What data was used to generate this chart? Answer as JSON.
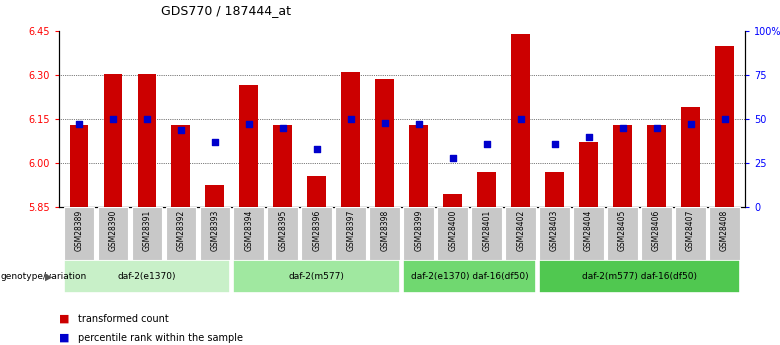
{
  "title": "GDS770 / 187444_at",
  "samples": [
    "GSM28389",
    "GSM28390",
    "GSM28391",
    "GSM28392",
    "GSM28393",
    "GSM28394",
    "GSM28395",
    "GSM28396",
    "GSM28397",
    "GSM28398",
    "GSM28399",
    "GSM28400",
    "GSM28401",
    "GSM28402",
    "GSM28403",
    "GSM28404",
    "GSM28405",
    "GSM28406",
    "GSM28407",
    "GSM28408"
  ],
  "transformed_count": [
    6.13,
    6.305,
    6.305,
    6.13,
    5.925,
    6.265,
    6.13,
    5.955,
    6.31,
    6.285,
    6.13,
    5.895,
    5.97,
    6.44,
    5.97,
    6.07,
    6.13,
    6.13,
    6.19,
    6.4
  ],
  "percentile_rank": [
    47,
    50,
    50,
    44,
    37,
    47,
    45,
    33,
    50,
    48,
    47,
    28,
    36,
    50,
    36,
    40,
    45,
    45,
    47,
    50
  ],
  "ylim_left": [
    5.85,
    6.45
  ],
  "ylim_right": [
    0,
    100
  ],
  "yticks_left": [
    5.85,
    6.0,
    6.15,
    6.3,
    6.45
  ],
  "yticks_right": [
    0,
    25,
    50,
    75,
    100
  ],
  "ytick_labels_right": [
    "0",
    "25",
    "50",
    "75",
    "100%"
  ],
  "groups": [
    {
      "label": "daf-2(e1370)",
      "start": 0,
      "end": 4,
      "color": "#c8f0c8"
    },
    {
      "label": "daf-2(m577)",
      "start": 5,
      "end": 9,
      "color": "#a0e8a0"
    },
    {
      "label": "daf-2(e1370) daf-16(df50)",
      "start": 10,
      "end": 13,
      "color": "#70d870"
    },
    {
      "label": "daf-2(m577) daf-16(df50)",
      "start": 14,
      "end": 19,
      "color": "#50c850"
    }
  ],
  "bar_color": "#cc0000",
  "dot_color": "#0000cc",
  "bar_width": 0.55,
  "baseline": 5.85,
  "genotype_label": "genotype/variation",
  "legend_bar": "transformed count",
  "legend_dot": "percentile rank within the sample",
  "background_color": "#ffffff"
}
